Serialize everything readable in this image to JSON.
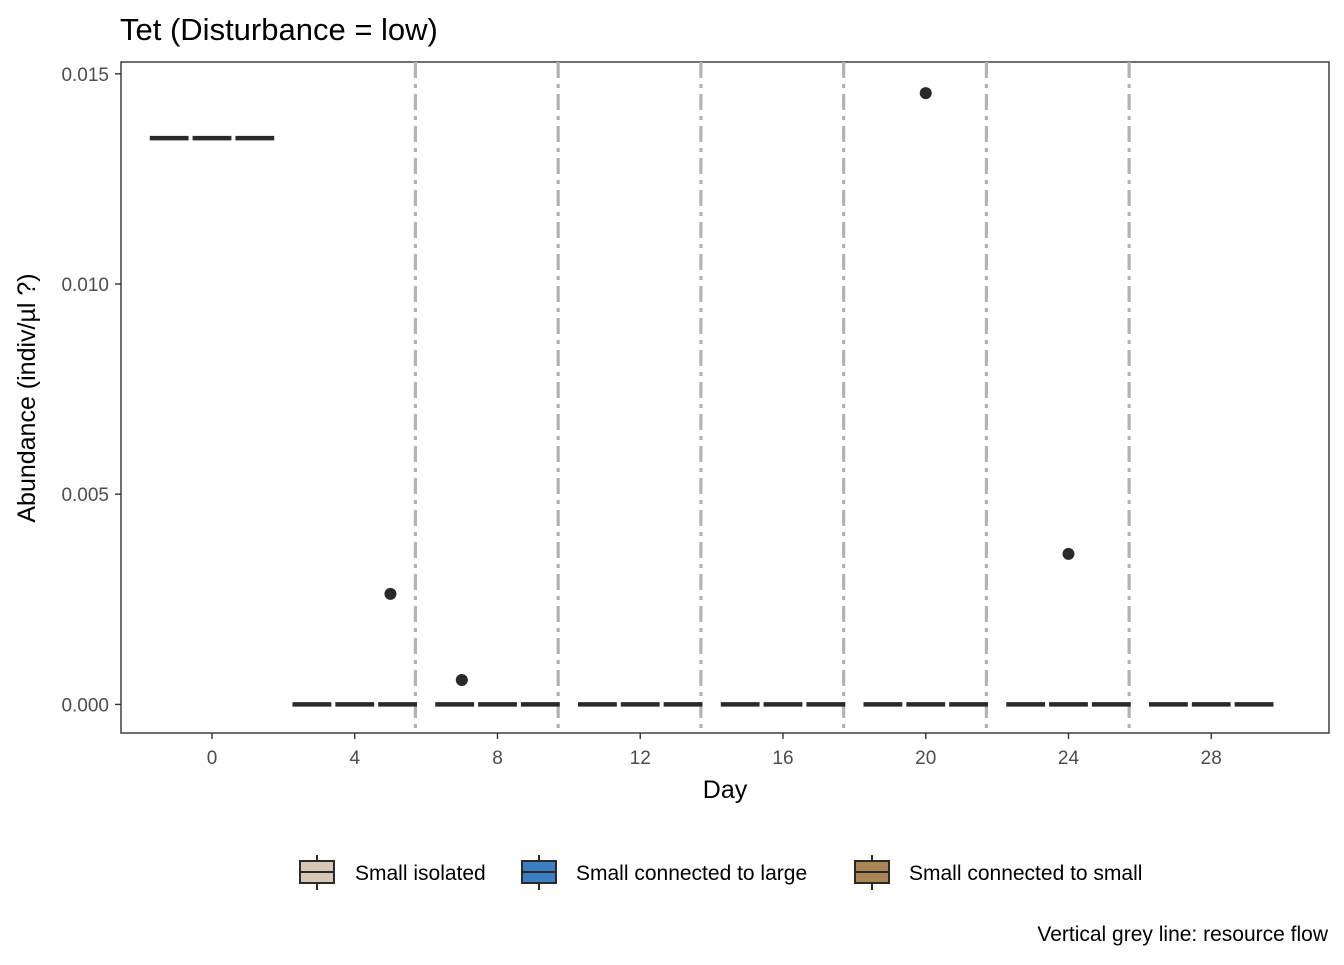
{
  "chart_data": {
    "type": "box",
    "title": "Tet (Disturbance = low)",
    "xlabel": "Day",
    "ylabel": "Abundance (indiv/µl ?)",
    "caption": "Vertical grey line: resource flow",
    "xlim": [
      -2.55,
      31.3
    ],
    "ylim": [
      -0.00068,
      0.01528
    ],
    "x_ticks": [
      0,
      4,
      8,
      12,
      16,
      20,
      24,
      28
    ],
    "y_ticks": [
      0.0,
      0.005,
      0.01,
      0.015
    ],
    "y_tick_labels": [
      "0.000",
      "0.005",
      "0.010",
      "0.015"
    ],
    "grid": false,
    "legend_position": "bottom",
    "days": [
      0,
      4,
      8,
      12,
      16,
      20,
      24,
      28
    ],
    "series": [
      {
        "name": "Small isolated",
        "color": "#d8c7b6",
        "medians": [
          0.01347,
          0.0,
          0.0,
          0.0,
          0.0,
          0.0,
          0.0,
          0.0
        ]
      },
      {
        "name": "Small connected to large",
        "color": "#3a7fc4",
        "medians": [
          0.01347,
          0.0,
          0.0,
          0.0,
          0.0,
          0.0,
          0.0,
          0.0
        ]
      },
      {
        "name": "Small connected to small",
        "color": "#a98651",
        "medians": [
          0.01347,
          0.0,
          0.0,
          0.0,
          0.0,
          0.0,
          0.0,
          0.0
        ]
      }
    ],
    "outliers": [
      {
        "x": 5,
        "y": 0.00263
      },
      {
        "x": 7,
        "y": 0.00058
      },
      {
        "x": 20,
        "y": 0.01454
      },
      {
        "x": 24,
        "y": 0.00358
      }
    ],
    "resource_flow_days": [
      5.7,
      9.7,
      13.7,
      17.7,
      21.7,
      25.7
    ],
    "colors": {
      "median_line": "#2a2a2a",
      "flow_line": "#b3b3b3",
      "outlier": "#2a2a2a",
      "axis": "#333333",
      "tick_label": "#4d4d4d"
    }
  }
}
